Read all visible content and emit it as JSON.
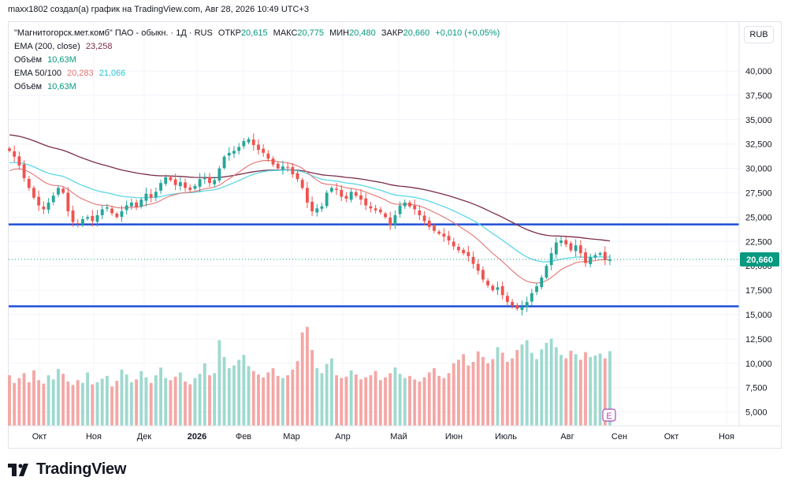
{
  "header": {
    "text": "maxx1802 создал(а) график на TradingView.com, Авг 28, 2026 10:49 UTC+3"
  },
  "legend": {
    "symbol": "\"Магнитогорск.мет.комб\" ПАО - обыкн. · 1Д · RUS",
    "open_label": "ОТКР",
    "open": "20,615",
    "high_label": "МАКС",
    "high": "20,775",
    "low_label": "МИН",
    "low": "20,480",
    "close_label": "ЗАКР",
    "close": "20,660",
    "change": "+0,010 (+0,05%)",
    "ema200_label": "EMA (200, close)",
    "ema200": "23,258",
    "volume_label": "Объём",
    "volume": "10,63M",
    "ema50_100_label": "EMA 50/100",
    "ema50": "20,283",
    "ema100": "21,066",
    "volume2_label": "Объём",
    "volume2": "10,63M"
  },
  "currency": "RUB",
  "price_tag": "20,660",
  "event_marker": "E",
  "brand": "TradingView",
  "colors": {
    "up": "#26a69a",
    "down": "#ef5350",
    "ema200": "#7b2d4a",
    "ema50": "#e57373",
    "ema100": "#5ad8e6",
    "levels": "#1e4fd8",
    "price_tag": "#089981",
    "volume_up": "#9fd9cf",
    "volume_down": "#f4a7a5"
  },
  "chart_data": {
    "type": "candlestick",
    "x_ticks": [
      "Окт",
      "Ноя",
      "Дек",
      "2026",
      "Фев",
      "Мар",
      "Апр",
      "Май",
      "Июн",
      "Июль",
      "Авг",
      "Сен",
      "Окт",
      "Ноя"
    ],
    "y_ticks": [
      "40,000",
      "37,500",
      "35,000",
      "32,500",
      "30,000",
      "27,500",
      "25,000",
      "22,500",
      "20,000",
      "17,500",
      "15,000",
      "12,500",
      "10,000",
      "7,500",
      "5,000"
    ],
    "ylim": [
      3500,
      43500
    ],
    "horizontal_levels": [
      24250,
      15850
    ],
    "last_price": 20.66,
    "close": [
      31.8,
      31.2,
      30.3,
      29.0,
      28.0,
      27.0,
      26.2,
      25.8,
      26.5,
      27.2,
      28.0,
      27.5,
      25.6,
      24.5,
      24.3,
      24.8,
      25.0,
      24.6,
      25.2,
      25.8,
      26.0,
      25.4,
      25.0,
      25.6,
      26.2,
      26.5,
      26.0,
      26.8,
      27.4,
      27.0,
      27.6,
      28.5,
      29.1,
      28.8,
      28.3,
      28.6,
      28.0,
      27.8,
      28.2,
      28.9,
      29.0,
      28.5,
      28.8,
      30.0,
      31.2,
      31.6,
      31.8,
      32.2,
      32.8,
      33.0,
      32.4,
      31.9,
      31.6,
      31.0,
      30.4,
      30.0,
      30.2,
      30.1,
      29.4,
      28.9,
      28.0,
      26.5,
      25.6,
      25.9,
      26.1,
      27.5,
      28.0,
      27.8,
      27.1,
      26.9,
      27.6,
      27.2,
      26.8,
      26.2,
      25.9,
      25.7,
      25.5,
      25.0,
      24.2,
      25.2,
      26.2,
      26.5,
      26.1,
      25.8,
      25.2,
      24.6,
      24.0,
      23.6,
      23.3,
      23.0,
      22.6,
      22.0,
      21.6,
      21.3,
      21.0,
      20.2,
      19.5,
      18.6,
      18.0,
      17.5,
      17.8,
      17.0,
      16.3,
      15.9,
      15.6,
      15.8,
      16.3,
      17.2,
      17.9,
      18.8,
      20.0,
      21.3,
      22.4,
      22.6,
      22.2,
      21.6,
      22.1,
      21.3,
      20.3,
      20.9,
      21.1,
      21.3,
      20.6,
      20.66
    ],
    "volume_millions": [
      7.2,
      6.1,
      6.8,
      7.5,
      6.2,
      7.9,
      6.5,
      6.0,
      7.2,
      6.6,
      8.1,
      7.4,
      6.3,
      5.8,
      6.5,
      6.1,
      7.6,
      5.9,
      6.2,
      6.7,
      7.1,
      5.6,
      6.4,
      8.0,
      7.3,
      6.2,
      6.6,
      7.8,
      6.9,
      6.1,
      7.2,
      8.3,
      6.8,
      6.5,
      7.0,
      7.6,
      6.3,
      5.9,
      6.8,
      7.4,
      8.9,
      7.2,
      7.5,
      12.2,
      9.8,
      8.2,
      8.6,
      9.4,
      10.1,
      8.5,
      7.8,
      7.3,
      6.9,
      7.6,
      8.2,
      7.1,
      6.8,
      7.2,
      8.0,
      9.2,
      13.3,
      14.1,
      10.8,
      8.2,
      7.5,
      8.8,
      9.6,
      7.2,
      6.8,
      7.0,
      7.9,
      7.3,
      6.6,
      6.9,
      7.2,
      7.8,
      6.5,
      6.9,
      7.5,
      8.3,
      7.4,
      6.8,
      7.1,
      6.6,
      6.3,
      6.9,
      7.6,
      8.2,
      7.1,
      6.8,
      7.5,
      8.9,
      9.4,
      10.2,
      8.6,
      9.1,
      10.6,
      9.8,
      8.9,
      9.5,
      11.2,
      10.4,
      9.1,
      9.6,
      10.8,
      11.6,
      12.2,
      10.4,
      9.5,
      10.9,
      11.8,
      12.4,
      11.2,
      10.1,
      9.6,
      10.7,
      10.2,
      9.4,
      10.5,
      9.8,
      10.0,
      10.3,
      9.6,
      10.63
    ]
  }
}
